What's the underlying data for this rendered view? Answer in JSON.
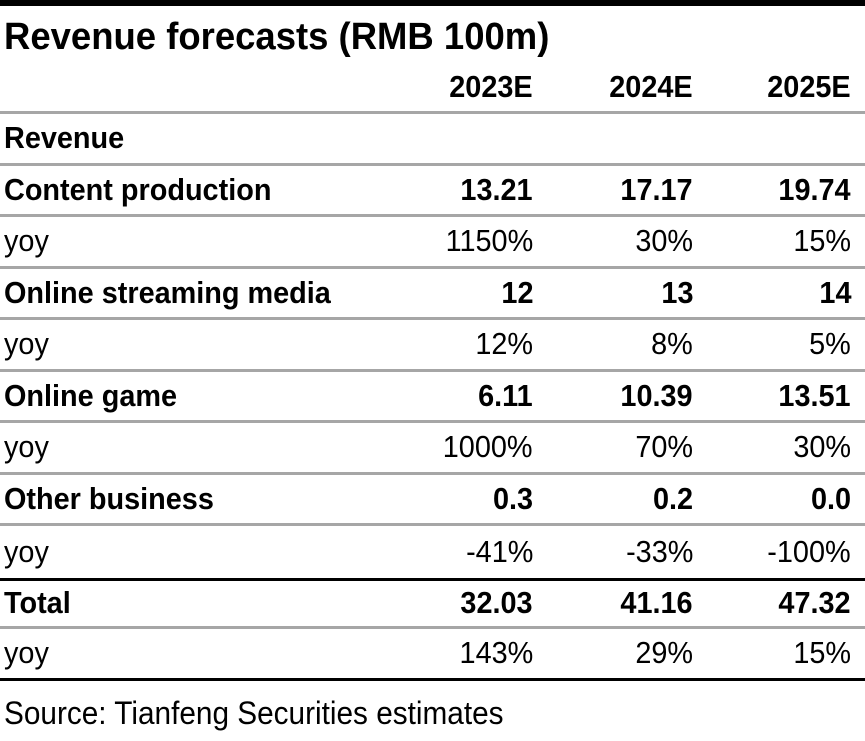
{
  "chart_data": {
    "type": "table",
    "title": "Revenue forecasts (RMB 100m)",
    "columns": [
      "2023E",
      "2024E",
      "2025E"
    ],
    "section_label": "Revenue",
    "rows": [
      {
        "label": "Content production",
        "values": [
          "13.21",
          "17.17",
          "19.74"
        ],
        "bold": true
      },
      {
        "label": "yoy",
        "values": [
          "1150%",
          "30%",
          "15%"
        ],
        "bold": false
      },
      {
        "label": "Online streaming media",
        "values": [
          "12",
          "13",
          "14"
        ],
        "bold": true
      },
      {
        "label": "yoy",
        "values": [
          "12%",
          "8%",
          "5%"
        ],
        "bold": false
      },
      {
        "label": "Online game",
        "values": [
          "6.11",
          "10.39",
          "13.51"
        ],
        "bold": true
      },
      {
        "label": "yoy",
        "values": [
          "1000%",
          "70%",
          "30%"
        ],
        "bold": false
      },
      {
        "label": "Other business",
        "values": [
          "0.3",
          "0.2",
          "0.0"
        ],
        "bold": true
      },
      {
        "label": "yoy",
        "values": [
          "-41%",
          "-33%",
          "-100%"
        ],
        "bold": false
      },
      {
        "label": "Total",
        "values": [
          "32.03",
          "41.16",
          "47.32"
        ],
        "bold": true
      },
      {
        "label": "yoy",
        "values": [
          "143%",
          "29%",
          "15%"
        ],
        "bold": false
      }
    ],
    "source": "Source: Tianfeng Securities estimates"
  }
}
